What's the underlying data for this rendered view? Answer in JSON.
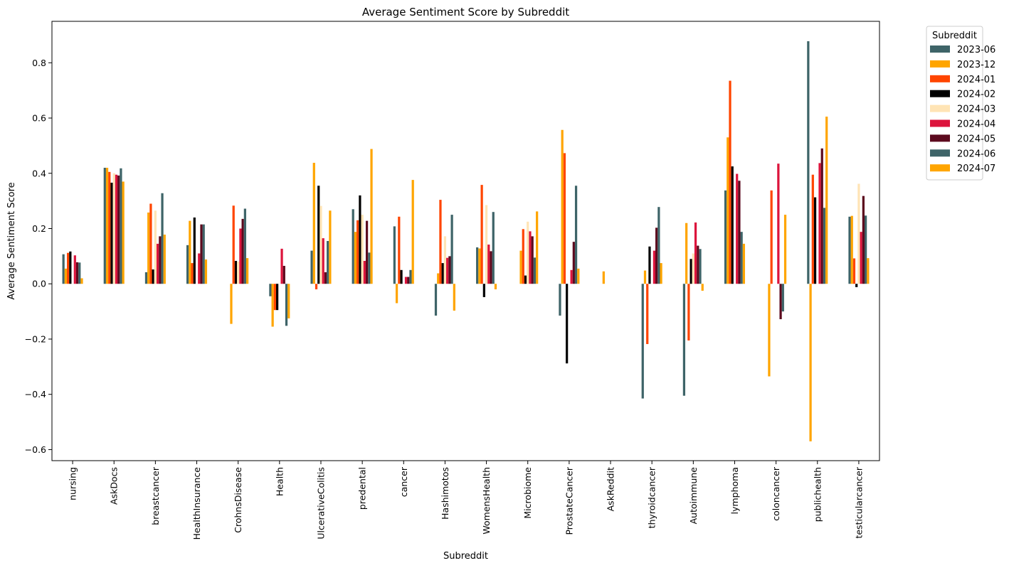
{
  "chart_data": {
    "type": "bar",
    "title": "Average Sentiment Score by Subreddit",
    "xlabel": "Subreddit",
    "ylabel": "Average Sentiment Score",
    "ylim": [
      -0.64,
      0.95
    ],
    "yticks": [
      -0.6,
      -0.4,
      -0.2,
      0.0,
      0.2,
      0.4,
      0.6,
      0.8
    ],
    "ytick_labels": [
      "−0.6",
      "−0.4",
      "−0.2",
      "0.0",
      "0.2",
      "0.4",
      "0.6",
      "0.8"
    ],
    "grid": false,
    "legend": {
      "title": "Subreddit",
      "placement": "outside-top-right"
    },
    "categories": [
      "nursing",
      "AskDocs",
      "breastcancer",
      "HealthInsurance",
      "CrohnsDisease",
      "Health",
      "UlcerativeColitis",
      "predental",
      "cancer",
      "Hashimotos",
      "WomensHealth",
      "Microbiome",
      "ProstateCancer",
      "AskReddit",
      "thyroidcancer",
      "Autoimmune",
      "lymphoma",
      "coloncancer",
      "publichealth",
      "testicularcancer"
    ],
    "series": [
      {
        "name": "2023-06",
        "color": "#3e6468",
        "values": [
          0.107,
          0.42,
          0.042,
          0.14,
          null,
          -0.045,
          0.12,
          0.27,
          0.208,
          -0.115,
          0.132,
          null,
          -0.115,
          null,
          -0.415,
          -0.405,
          0.338,
          null,
          0.878,
          0.243
        ]
      },
      {
        "name": "2023-12",
        "color": "#ffa500",
        "values": [
          0.055,
          0.42,
          0.258,
          0.228,
          -0.145,
          -0.155,
          0.438,
          0.188,
          -0.07,
          0.038,
          0.128,
          0.12,
          0.557,
          0.045,
          0.048,
          0.22,
          0.53,
          -0.335,
          -0.57,
          0.246
        ]
      },
      {
        "name": "2024-01",
        "color": "#ff4500",
        "values": [
          0.112,
          0.405,
          0.29,
          0.075,
          0.283,
          -0.095,
          -0.02,
          0.23,
          0.243,
          0.304,
          0.358,
          0.198,
          0.473,
          null,
          -0.218,
          -0.205,
          0.735,
          0.338,
          0.395,
          0.092
        ]
      },
      {
        "name": "2024-02",
        "color": "#000000",
        "values": [
          0.117,
          0.366,
          0.052,
          0.24,
          0.083,
          -0.095,
          0.355,
          0.32,
          0.05,
          0.075,
          -0.048,
          0.03,
          -0.288,
          null,
          0.135,
          0.09,
          0.425,
          null,
          0.313,
          -0.012
        ]
      },
      {
        "name": "2024-03",
        "color": "#ffe4b5",
        "values": [
          null,
          0.4,
          0.265,
          null,
          0.08,
          null,
          0.282,
          0.25,
          null,
          0.172,
          0.285,
          0.225,
          null,
          null,
          null,
          0.11,
          null,
          null,
          null,
          0.362
        ]
      },
      {
        "name": "2024-04",
        "color": "#dc143c",
        "values": [
          0.103,
          0.395,
          0.145,
          0.11,
          0.2,
          0.127,
          0.165,
          0.083,
          0.025,
          0.094,
          0.142,
          0.19,
          0.05,
          null,
          0.12,
          0.222,
          0.398,
          0.435,
          0.437,
          0.188
        ]
      },
      {
        "name": "2024-05",
        "color": "#5c0a1e",
        "values": [
          0.078,
          0.392,
          0.172,
          0.215,
          0.235,
          0.065,
          0.042,
          0.228,
          0.025,
          0.1,
          0.118,
          0.172,
          0.152,
          null,
          0.203,
          0.138,
          0.373,
          -0.128,
          0.49,
          0.318
        ]
      },
      {
        "name": "2024-06",
        "color": "#3e6468",
        "values": [
          0.077,
          0.418,
          0.328,
          0.215,
          0.272,
          -0.152,
          0.155,
          0.113,
          0.05,
          0.25,
          0.26,
          0.095,
          0.355,
          null,
          0.278,
          0.126,
          0.188,
          -0.1,
          0.275,
          0.247
        ]
      },
      {
        "name": "2024-07",
        "color": "#ffa500",
        "values": [
          0.02,
          0.37,
          0.178,
          0.088,
          0.093,
          -0.125,
          0.265,
          0.488,
          0.376,
          -0.097,
          -0.02,
          0.262,
          0.055,
          null,
          0.075,
          -0.025,
          0.145,
          0.25,
          0.605,
          0.093
        ]
      }
    ]
  }
}
